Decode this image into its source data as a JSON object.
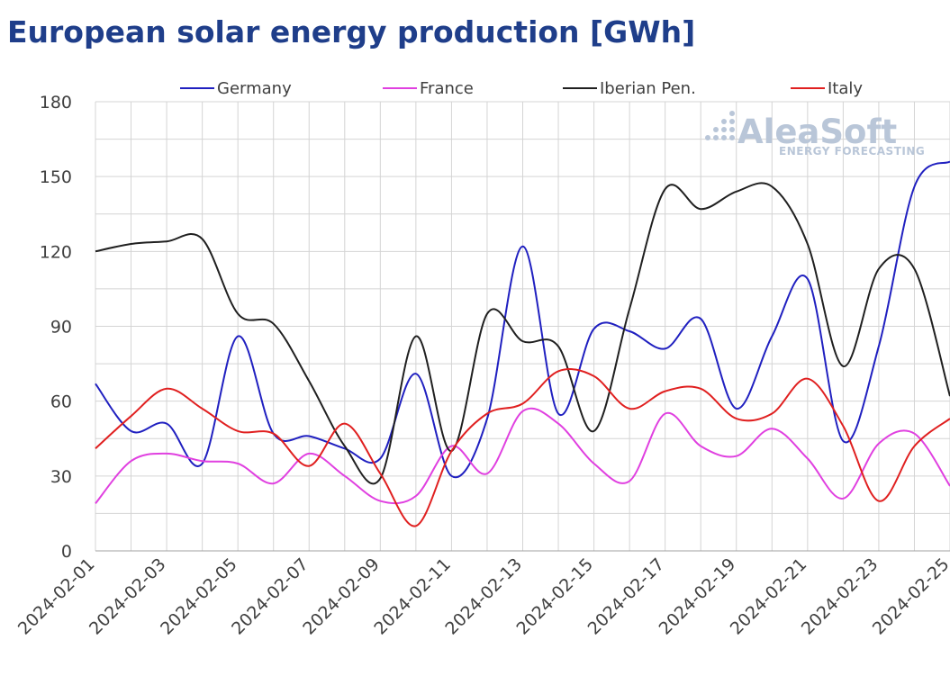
{
  "header": {
    "title": "European solar energy production [GWh]"
  },
  "logo": {
    "name": "AleaSoft",
    "tagline": "ENERGY FORECASTING"
  },
  "chart_data": {
    "type": "line",
    "title": "European solar energy production [GWh]",
    "xlabel": "",
    "ylabel": "",
    "ylim": [
      0,
      180
    ],
    "yticks": [
      0,
      30,
      60,
      90,
      120,
      150,
      180
    ],
    "grid": true,
    "legend_position": "top",
    "x": [
      "2024-02-01",
      "2024-02-02",
      "2024-02-03",
      "2024-02-04",
      "2024-02-05",
      "2024-02-06",
      "2024-02-07",
      "2024-02-08",
      "2024-02-09",
      "2024-02-10",
      "2024-02-11",
      "2024-02-12",
      "2024-02-13",
      "2024-02-14",
      "2024-02-15",
      "2024-02-16",
      "2024-02-17",
      "2024-02-18",
      "2024-02-19",
      "2024-02-20",
      "2024-02-21",
      "2024-02-22",
      "2024-02-23",
      "2024-02-24",
      "2024-02-25"
    ],
    "xticks": [
      "2024-02-01",
      "2024-02-03",
      "2024-02-05",
      "2024-02-07",
      "2024-02-09",
      "2024-02-11",
      "2024-02-13",
      "2024-02-15",
      "2024-02-17",
      "2024-02-19",
      "2024-02-21",
      "2024-02-23",
      "2024-02-25"
    ],
    "series": [
      {
        "name": "Germany",
        "color": "#2020c0",
        "values": [
          67,
          48,
          51,
          35,
          86,
          47,
          46,
          41,
          37,
          71,
          30,
          53,
          122,
          55,
          89,
          88,
          81,
          93,
          57,
          86,
          109,
          44,
          82,
          146,
          156
        ]
      },
      {
        "name": "France",
        "color": "#e040e0",
        "values": [
          19,
          36,
          39,
          36,
          35,
          27,
          39,
          30,
          20,
          22,
          42,
          31,
          56,
          51,
          35,
          28,
          55,
          42,
          38,
          49,
          37,
          21,
          43,
          47,
          26
        ]
      },
      {
        "name": "Iberian Pen.",
        "color": "#202020",
        "values": [
          120,
          123,
          124,
          125,
          95,
          91,
          68,
          42,
          29,
          86,
          40,
          95,
          84,
          82,
          48,
          97,
          145,
          137,
          144,
          146,
          123,
          74,
          113,
          113,
          62
        ]
      },
      {
        "name": "Italy",
        "color": "#e02020",
        "values": [
          41,
          54,
          65,
          57,
          48,
          47,
          34,
          51,
          31,
          10,
          40,
          55,
          59,
          72,
          70,
          57,
          64,
          65,
          53,
          55,
          69,
          50,
          20,
          42,
          53
        ]
      }
    ]
  }
}
